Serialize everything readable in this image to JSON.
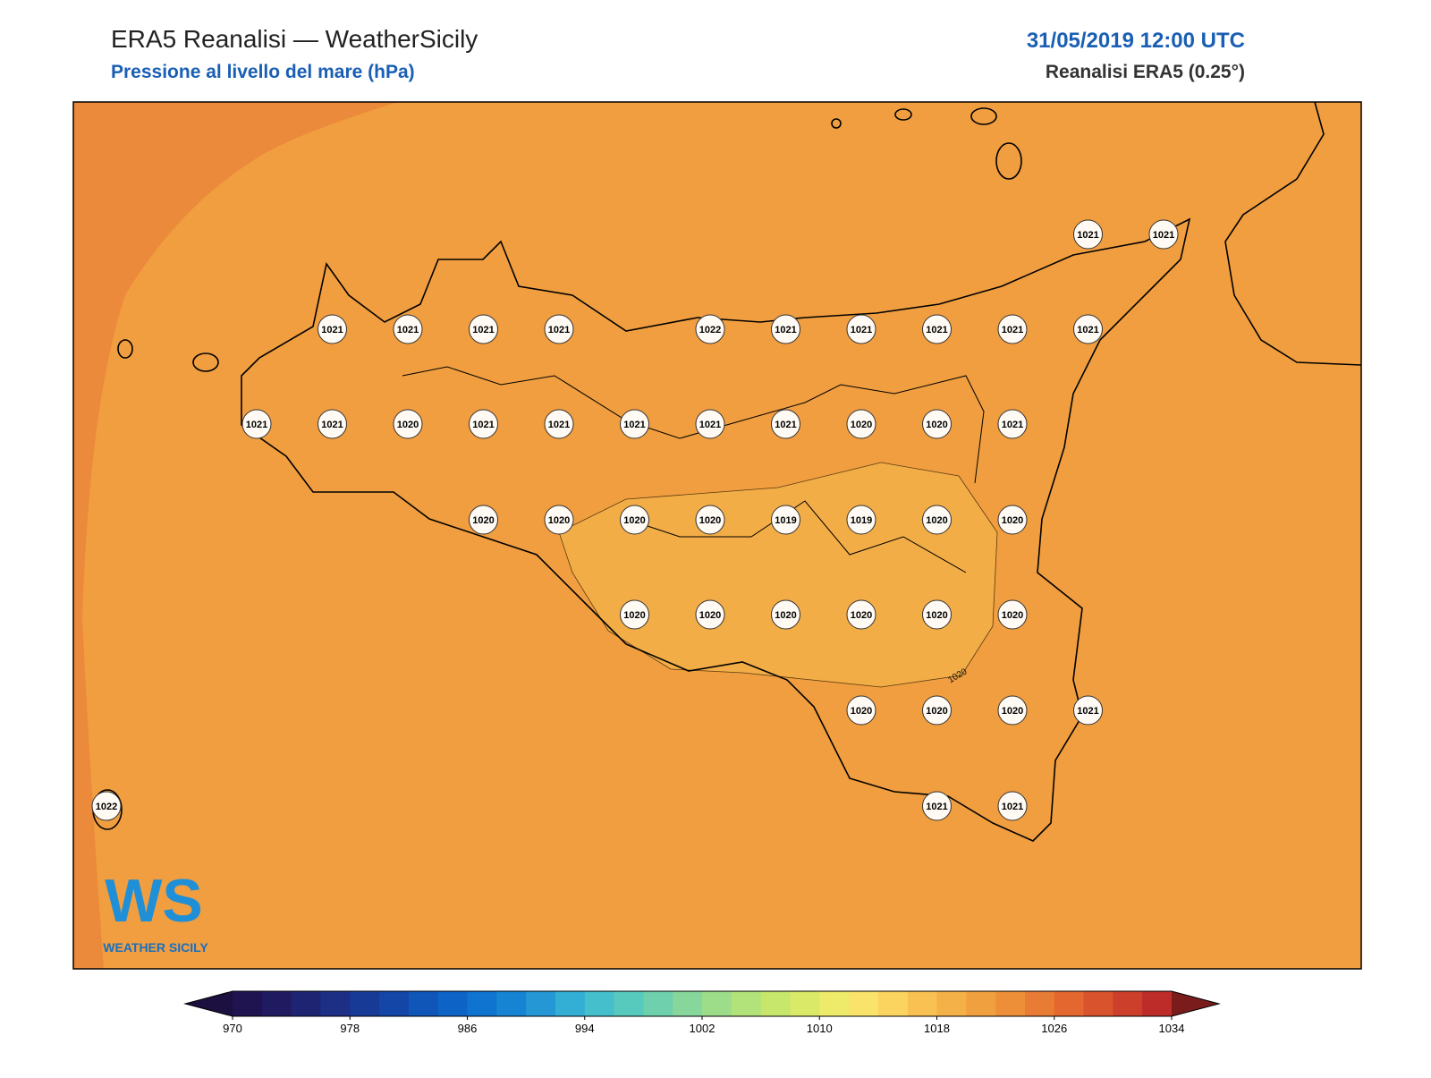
{
  "header": {
    "title": "ERA5 Reanalisi — WeatherSicily",
    "subtitle": "Pressione al livello del mare (hPa)",
    "datetime": "31/05/2019 12:00 UTC",
    "source": "Reanalisi ERA5 (0.25°)"
  },
  "map": {
    "background_color": "#f09e40",
    "corner_color": "#eb8a3a",
    "low_area_color": "#f3ad47",
    "contour_label": "1020"
  },
  "stations": [
    1021,
    1021,
    1021,
    1021,
    1021,
    1021,
    1022,
    1021,
    1021,
    1021,
    1021,
    1021,
    1021,
    1021,
    1020,
    1021,
    1021,
    1021,
    1021,
    1021,
    1020,
    1020,
    1021,
    1020,
    1020,
    1020,
    1020,
    1019,
    1019,
    1020,
    1020,
    1020,
    1020,
    1020,
    1020,
    1020,
    1020,
    1020,
    1020,
    1020,
    1021,
    1022,
    1021,
    1021
  ],
  "colorbar": {
    "ticks": [
      970,
      978,
      986,
      994,
      1002,
      1010,
      1018,
      1026,
      1034
    ],
    "colors": [
      "#1f1350",
      "#201a60",
      "#1f2472",
      "#1c2f85",
      "#183a97",
      "#1446a8",
      "#1055b8",
      "#0e64c6",
      "#0f74cf",
      "#1784d3",
      "#2497d4",
      "#33aed5",
      "#45bfcc",
      "#58c9bd",
      "#6fd0ad",
      "#87d79c",
      "#9ddd8a",
      "#b2e27a",
      "#c6e66c",
      "#dbe968",
      "#eeeb6b",
      "#fae36a",
      "#fbd35f",
      "#f8c151",
      "#f4b148",
      "#f1a03f",
      "#ed8f39",
      "#e97c34",
      "#e3672f",
      "#d9532c",
      "#cc3f2a",
      "#bd2c28"
    ],
    "under_color": "#1c1040",
    "over_color": "#7b1c1c"
  },
  "logo": {
    "mark": "WS",
    "text": "WEATHER SICILY"
  }
}
